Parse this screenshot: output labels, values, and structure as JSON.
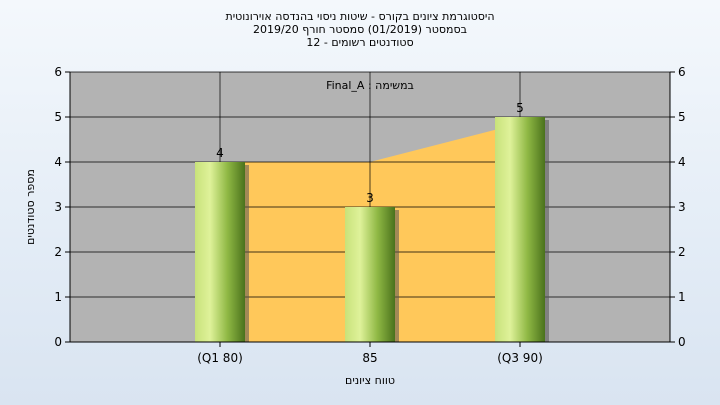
{
  "chart_data": {
    "type": "bar",
    "title": "היסטוגרמת ציונים בקורס - שיטות ניסוי בהנדסה אוירונוטית",
    "subtitle_1": "בסמסטר  (01/2019)  סמסטר חורף 2019/20",
    "subtitle_2": "סטודנטים רשומים - 12",
    "annotation": "Final_A : במשימה",
    "xlabel": "טווח ציונים",
    "ylabel": "מספר סטודנטים",
    "categories": [
      "(Q1 80)",
      "85",
      "(Q3 90)"
    ],
    "values": [
      4,
      3,
      5
    ],
    "area_overlay": [
      4,
      4,
      5
    ],
    "ylim": [
      0,
      6
    ],
    "yticks": [
      0,
      1,
      2,
      3,
      4,
      5,
      6
    ],
    "grid": true,
    "secondary_y_axis": true,
    "colors": {
      "plot_background": "#b3b3b3",
      "area_fill": "#ffc85a",
      "bar_light": "#d6ec8a",
      "bar_dark": "#4f7a1f",
      "gridline": "#000000"
    }
  }
}
